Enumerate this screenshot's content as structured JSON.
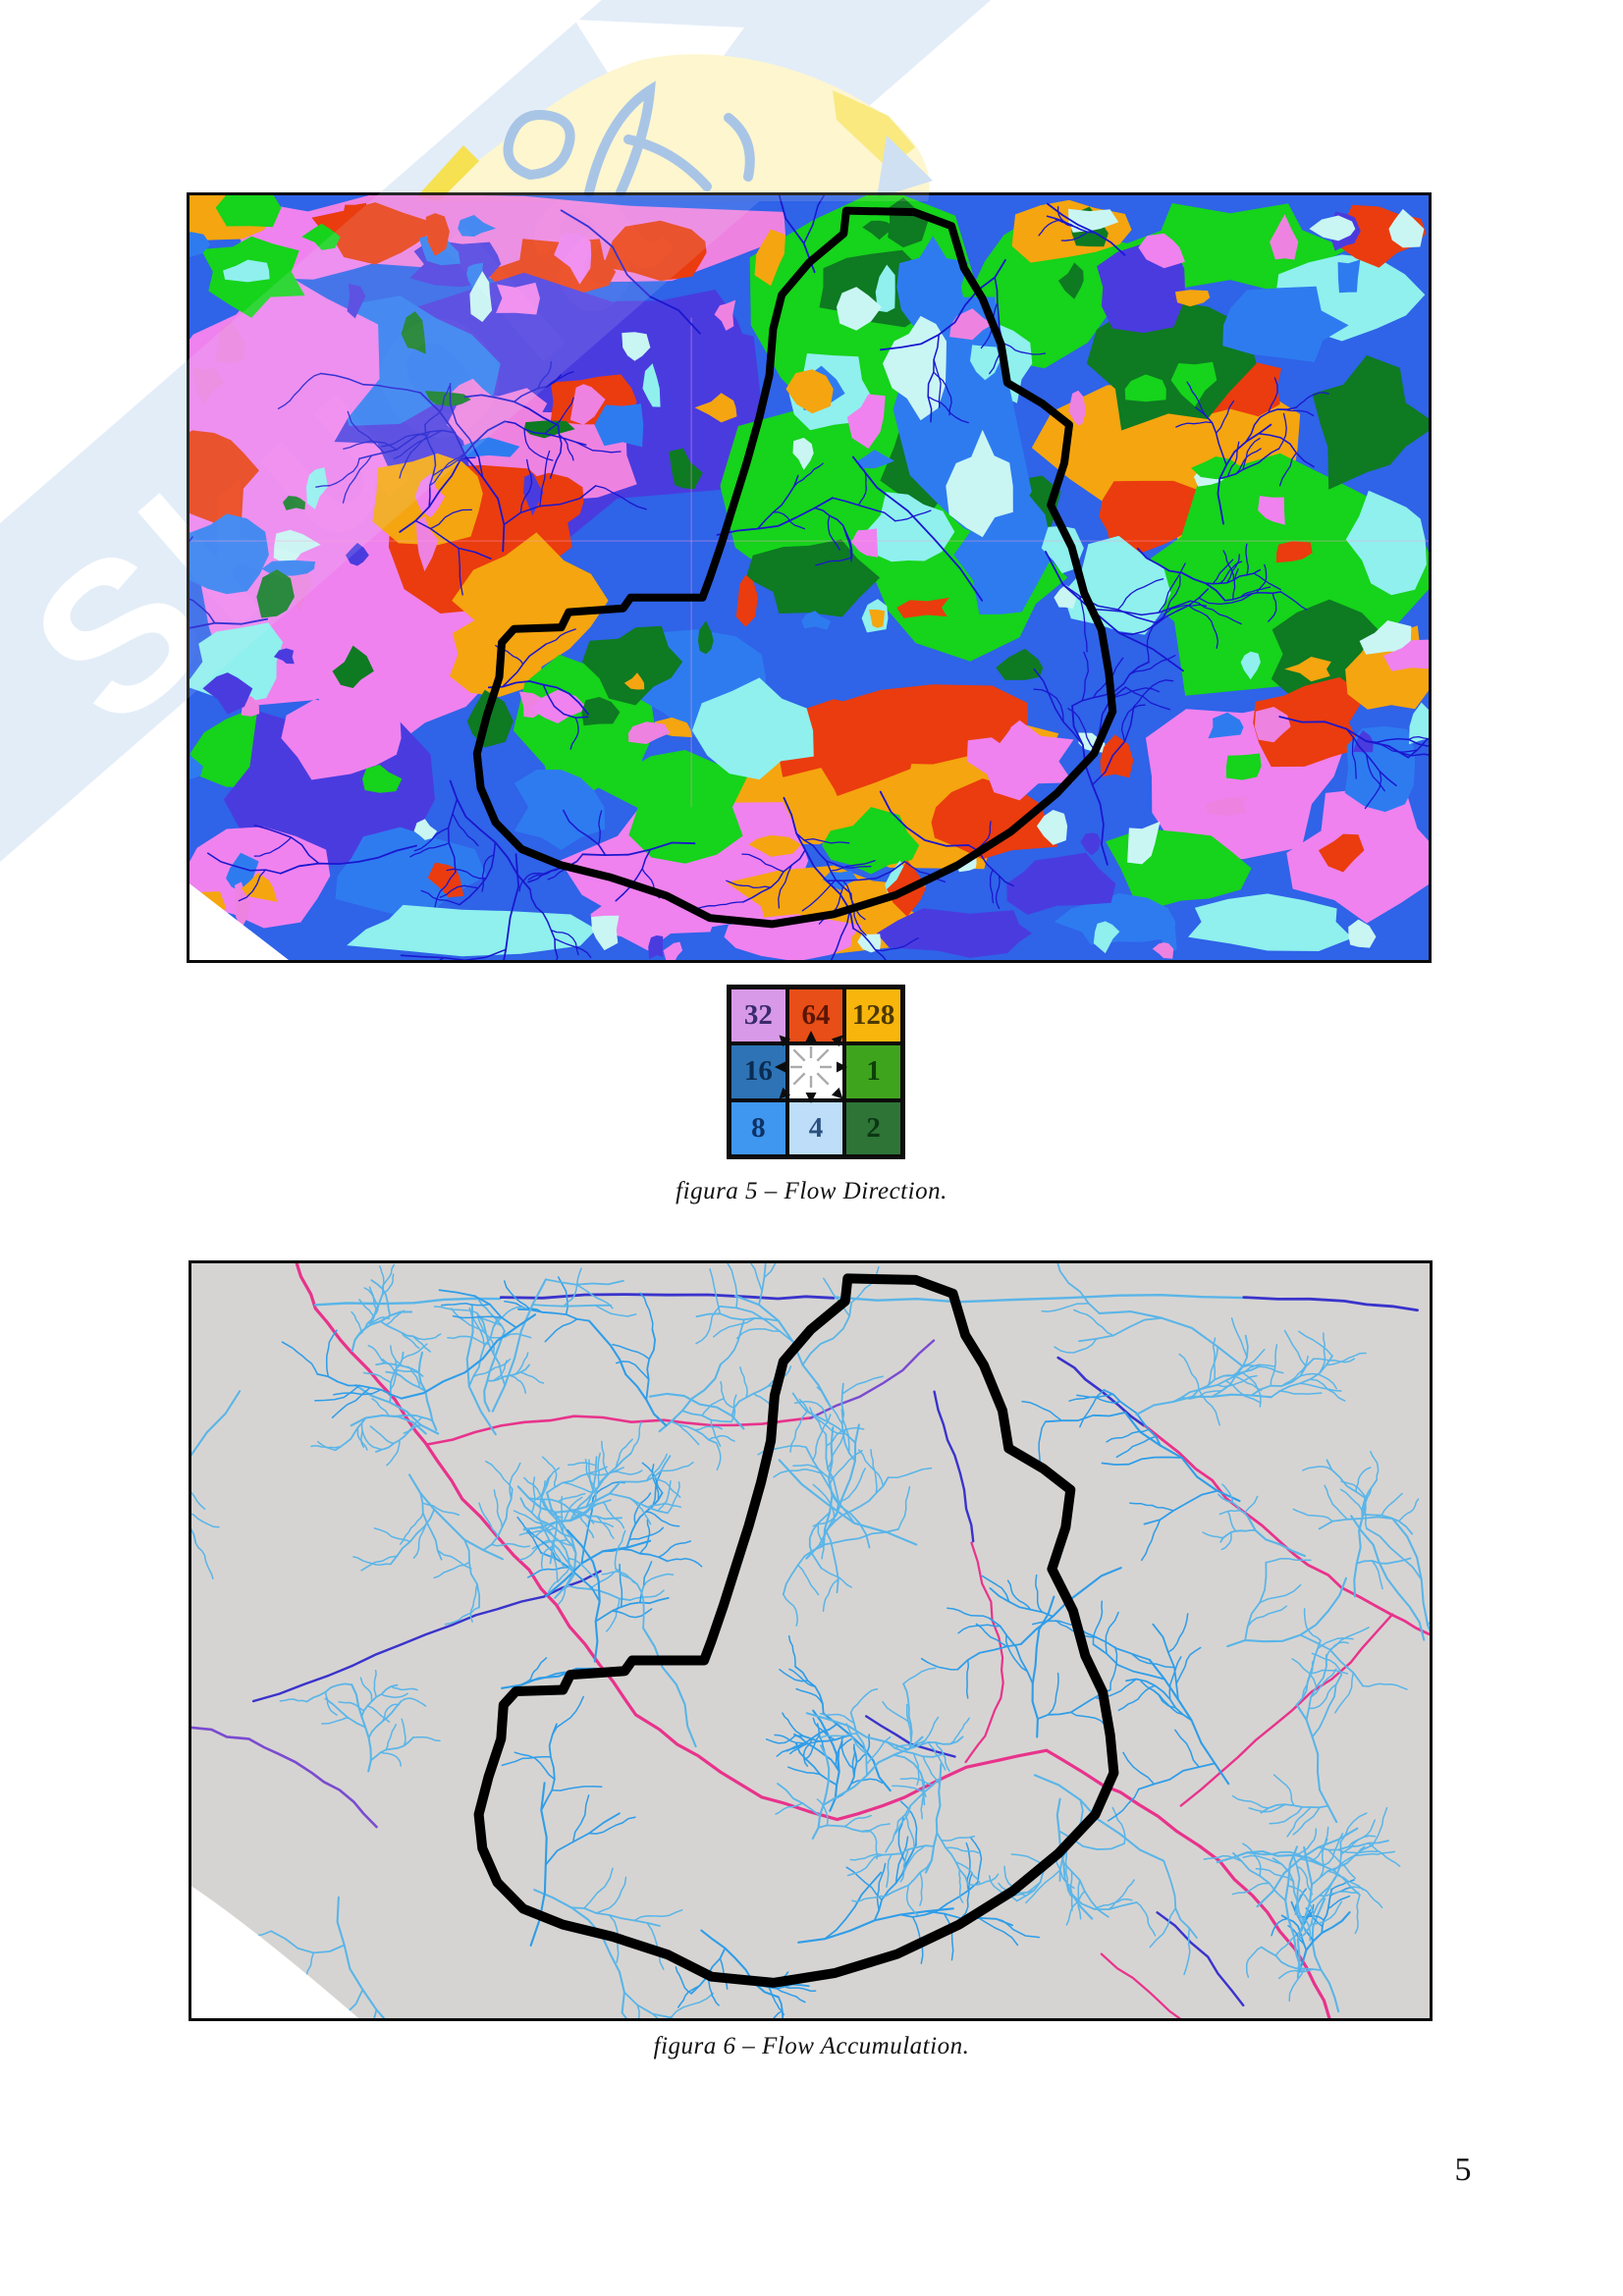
{
  "page": {
    "number": "5",
    "background_color": "#ffffff"
  },
  "watermark": {
    "letters": "Skuola",
    "ribbon_color": "#e3edf8",
    "page_icon_color": "#fdf6cf",
    "script_color": "#a9c5e6",
    "accent_yellow": "#f6df3e"
  },
  "figure5": {
    "caption": "figura 5 – Flow Direction.",
    "legend_cells": [
      {
        "value": "32",
        "direction": "NW",
        "cell_color": "#d89ae8",
        "text_color": "#3a2a6e"
      },
      {
        "value": "64",
        "direction": "N",
        "cell_color": "#e84e17",
        "text_color": "#5c1505"
      },
      {
        "value": "128",
        "direction": "NE",
        "cell_color": "#f8b60c",
        "text_color": "#4c3804"
      },
      {
        "value": "16",
        "direction": "W",
        "cell_color": "#2d73b6",
        "text_color": "#0a2c52"
      },
      {
        "value": "",
        "direction": "C",
        "cell_color": "#ffffff",
        "text_color": "#000000"
      },
      {
        "value": "1",
        "direction": "E",
        "cell_color": "#3fa41d",
        "text_color": "#0e4009"
      },
      {
        "value": "8",
        "direction": "SW",
        "cell_color": "#3f97ef",
        "text_color": "#0e3166"
      },
      {
        "value": "4",
        "direction": "S",
        "cell_color": "#bdddf8",
        "text_color": "#2a517e"
      },
      {
        "value": "2",
        "direction": "SE",
        "cell_color": "#2d7436",
        "text_color": "#0b3713"
      }
    ],
    "map_palette": {
      "blue": "#2f63e8",
      "blue2": "#2e7bf0",
      "blue_violet": "#4a3bdf",
      "violet": "#ef82ee",
      "pink": "#ee82e0",
      "cyan": "#8ff0ee",
      "pale_cyan": "#c9f6f3",
      "green": "#16d31b",
      "dark_green": "#0e7a22",
      "orange": "#f5a50f",
      "red": "#ea3c0e",
      "stream": "#1a17cf",
      "outline": "#000000",
      "gridline": "#ff9fd0"
    }
  },
  "figure6": {
    "caption": "figura 6 – Flow Accumulation.",
    "map_palette": {
      "background": "#d6d4d2",
      "stream_light": "#5ab5e8",
      "stream_medium": "#2f9de8",
      "stream_indigo": "#3a33cc",
      "stream_violet": "#7a4bd0",
      "stream_magenta": "#e8338c",
      "stream_pink": "#ff5fb0",
      "outline": "#000000"
    }
  }
}
